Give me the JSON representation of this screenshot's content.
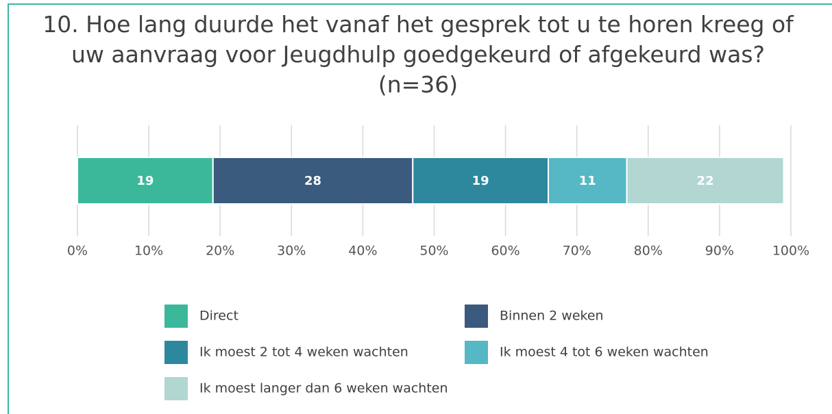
{
  "chart_data": {
    "type": "stacked-bar",
    "orientation": "horizontal",
    "title": "10. Hoe lang duurde het vanaf het gesprek tot u te horen kreeg of uw aanvraag voor Jeugdhulp goedgekeurd of afgekeurd was? (n=36)",
    "series": [
      {
        "name": "Direct",
        "color": "#3bb89a",
        "values": [
          19
        ]
      },
      {
        "name": "Binnen 2 weken",
        "color": "#3a5a7e",
        "values": [
          28
        ]
      },
      {
        "name": "Ik moest 2 tot 4 weken wachten",
        "color": "#2d889e",
        "values": [
          19
        ]
      },
      {
        "name": "Ik moest 4 tot 6 weken wachten",
        "color": "#55b8c4",
        "values": [
          11
        ]
      },
      {
        "name": "Ik moest langer dan 6 weken wachten",
        "color": "#b2d6d2",
        "values": [
          22
        ]
      }
    ],
    "xlim": [
      0,
      100
    ],
    "xticks": [
      {
        "value": 0,
        "label": "0%"
      },
      {
        "value": 10,
        "label": "10%"
      },
      {
        "value": 20,
        "label": "20%"
      },
      {
        "value": 30,
        "label": "30%"
      },
      {
        "value": 40,
        "label": "40%"
      },
      {
        "value": 50,
        "label": "50%"
      },
      {
        "value": 60,
        "label": "60%"
      },
      {
        "value": 70,
        "label": "70%"
      },
      {
        "value": 80,
        "label": "80%"
      },
      {
        "value": 90,
        "label": "90%"
      },
      {
        "value": 100,
        "label": "100%"
      }
    ],
    "grid": true,
    "legend": "bottom"
  }
}
